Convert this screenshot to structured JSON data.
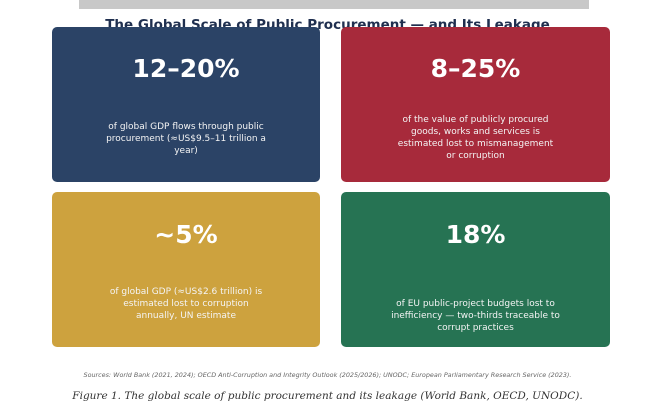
{
  "title": "The Global Scale of Public Procurement — and Its Leakage",
  "colors": {
    "navy": "#2b4366",
    "crimson": "#a72a3b",
    "gold": "#cda23e",
    "green": "#267353",
    "title_text": "#1f2f4f"
  },
  "chart_data": {
    "type": "table",
    "title": "The Global Scale of Public Procurement — and Its Leakage",
    "cards": [
      {
        "value": "12–20%",
        "description": "of global GDP flows through public procurement (≈US$9.5–11 trillion a year)",
        "color": "#2b4366"
      },
      {
        "value": "8–25%",
        "description": "of the value of publicly procured goods, works and services is estimated lost to mismanagement or corruption",
        "color": "#a72a3b"
      },
      {
        "value": "~5%",
        "description": "of global GDP (≈US$2.6 trillion) is estimated lost to corruption annually, UN estimate",
        "color": "#cda23e"
      },
      {
        "value": "18%",
        "description": "of EU public-project budgets lost to inefficiency — two-thirds traceable to corrupt practices",
        "color": "#267353"
      }
    ]
  },
  "sources": "Sources: World Bank (2021, 2024); OECD Anti-Corruption and Integrity Outlook (2025/2026); UNODC; European Parliamentary Research Service (2023).",
  "caption": "Figure 1. The global scale of public procurement and its leakage (World Bank, OECD, UNODC)."
}
